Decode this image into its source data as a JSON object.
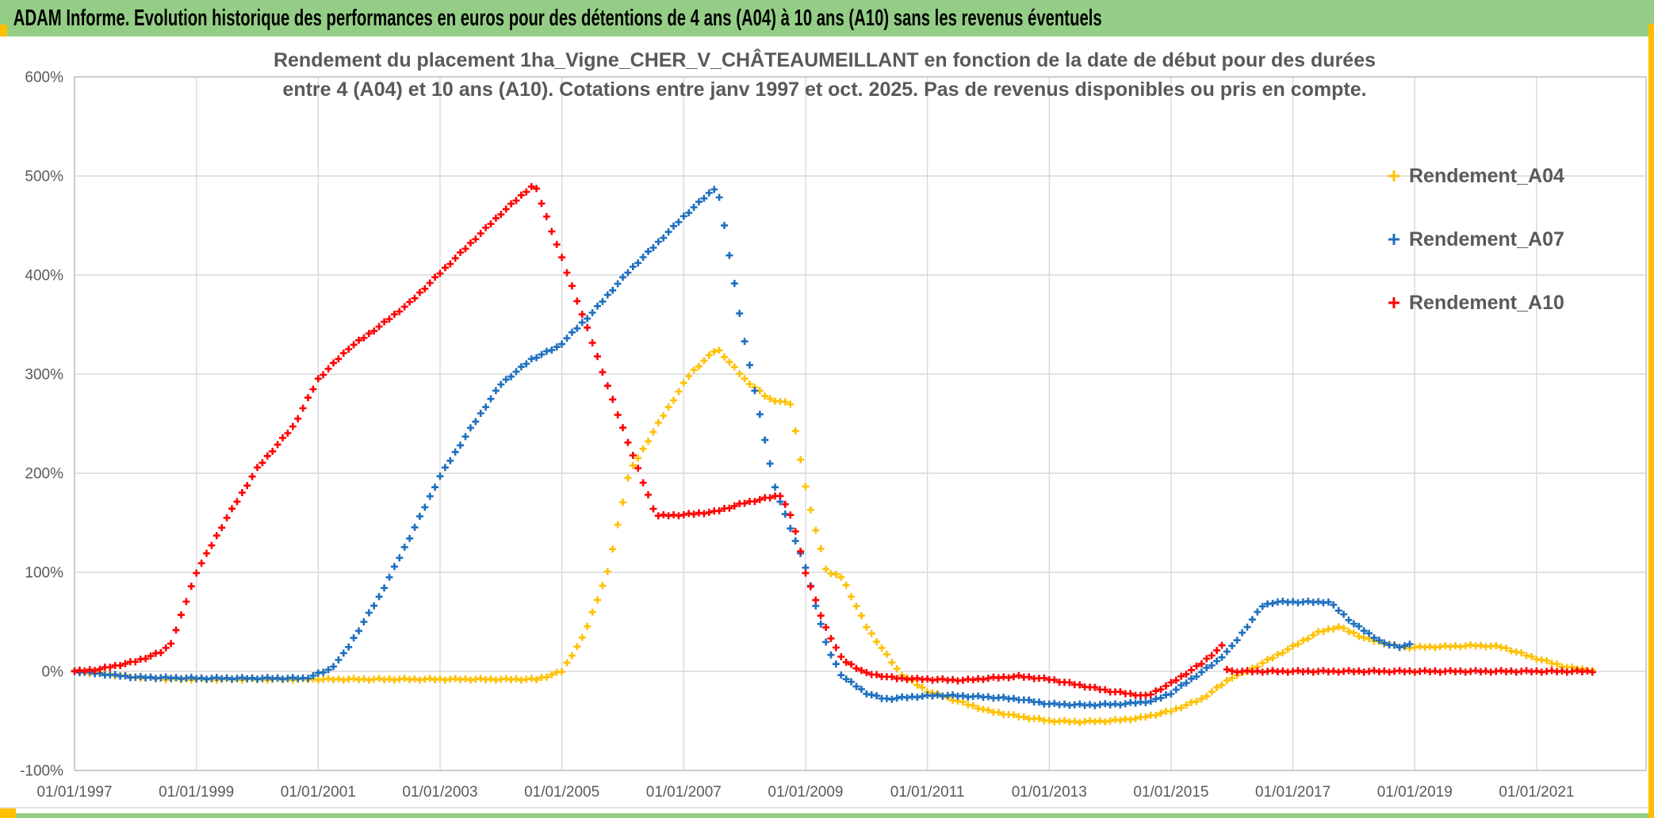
{
  "banner": {
    "title": "ADAM Informe. Evolution historique des performances en euros pour des détentions de 4 ans (A04) à 10 ans (A10) sans les revenus éventuels",
    "bg_color": "#94CE86",
    "accent_color": "#FFC000"
  },
  "chart_data": {
    "type": "scatter",
    "marker": "+",
    "title_line1": "Rendement du placement 1ha_Vigne_CHER_V_CHÂTEAUMEILLANT en fonction de la date de début pour des durées",
    "title_line2": "entre 4 (A04) et 10 ans (A10). Cotations entre janv 1997 et oct. 2025. Pas de revenus disponibles ou pris en compte.",
    "x_axis": {
      "tick_labels": [
        "01/01/1997",
        "01/01/1999",
        "01/01/2001",
        "01/01/2003",
        "01/01/2005",
        "01/01/2007",
        "01/01/2009",
        "01/01/2011",
        "01/01/2013",
        "01/01/2015",
        "01/01/2017",
        "01/01/2019",
        "01/01/2021"
      ],
      "range_years": [
        1997.0,
        2022.8
      ],
      "grid": true
    },
    "y_axis": {
      "tick_labels": [
        "600%",
        "500%",
        "400%",
        "300%",
        "200%",
        "100%",
        "0%",
        "-100%"
      ],
      "range_pct": [
        -100,
        600
      ],
      "grid": true
    },
    "legend_position": "right",
    "series": [
      {
        "name": "Rendement_A04",
        "color": "#FFC000",
        "points": [
          [
            1997.0,
            0
          ],
          [
            1997.4,
            -2
          ],
          [
            1998.0,
            -6
          ],
          [
            1998.5,
            -7.5
          ],
          [
            1999.0,
            -8
          ],
          [
            2000.0,
            -8
          ],
          [
            2001.0,
            -8
          ],
          [
            2002.0,
            -8
          ],
          [
            2003.0,
            -8
          ],
          [
            2004.0,
            -8
          ],
          [
            2004.6,
            -8
          ],
          [
            2005.0,
            0
          ],
          [
            2005.35,
            35
          ],
          [
            2005.75,
            100
          ],
          [
            2006.1,
            200
          ],
          [
            2006.6,
            252
          ],
          [
            2007.1,
            300
          ],
          [
            2007.55,
            326
          ],
          [
            2008.0,
            295
          ],
          [
            2008.4,
            275
          ],
          [
            2008.75,
            270
          ],
          [
            2009.05,
            170
          ],
          [
            2009.35,
            100
          ],
          [
            2009.6,
            95
          ],
          [
            2010.0,
            45
          ],
          [
            2010.55,
            -2
          ],
          [
            2011.0,
            -20
          ],
          [
            2012.0,
            -40
          ],
          [
            2012.55,
            -46
          ],
          [
            2013.0,
            -50
          ],
          [
            2013.5,
            -51
          ],
          [
            2014.0,
            -50
          ],
          [
            2014.5,
            -47
          ],
          [
            2015.0,
            -40
          ],
          [
            2015.5,
            -28
          ],
          [
            2016.0,
            -6
          ],
          [
            2016.25,
            0
          ],
          [
            2017.0,
            25
          ],
          [
            2017.4,
            39
          ],
          [
            2017.75,
            45
          ],
          [
            2018.2,
            33
          ],
          [
            2018.8,
            24
          ],
          [
            2019.5,
            25
          ],
          [
            2020.0,
            26
          ],
          [
            2020.4,
            25
          ],
          [
            2021.0,
            13
          ],
          [
            2021.5,
            4
          ],
          [
            2021.92,
            1
          ]
        ]
      },
      {
        "name": "Rendement_A07",
        "color": "#1E6FC0",
        "points": [
          [
            1997.0,
            0
          ],
          [
            1997.5,
            -3
          ],
          [
            1998.0,
            -6
          ],
          [
            1999.0,
            -7
          ],
          [
            2000.0,
            -7
          ],
          [
            2000.8,
            -7
          ],
          [
            2001.2,
            2
          ],
          [
            2001.45,
            20
          ],
          [
            2002.0,
            75
          ],
          [
            2002.5,
            135
          ],
          [
            2003.0,
            197
          ],
          [
            2003.5,
            245
          ],
          [
            2004.0,
            290
          ],
          [
            2004.5,
            315
          ],
          [
            2004.95,
            328
          ],
          [
            2005.5,
            362
          ],
          [
            2006.1,
            404
          ],
          [
            2006.5,
            428
          ],
          [
            2007.0,
            459
          ],
          [
            2007.55,
            490
          ],
          [
            2008.0,
            333
          ],
          [
            2008.5,
            185
          ],
          [
            2009.0,
            105
          ],
          [
            2009.35,
            25
          ],
          [
            2009.6,
            -5
          ],
          [
            2010.0,
            -22
          ],
          [
            2010.3,
            -28
          ],
          [
            2010.7,
            -26
          ],
          [
            2011.2,
            -24
          ],
          [
            2012.0,
            -26
          ],
          [
            2012.5,
            -28
          ],
          [
            2013.0,
            -33
          ],
          [
            2013.6,
            -34
          ],
          [
            2014.2,
            -33
          ],
          [
            2014.7,
            -30
          ],
          [
            2015.0,
            -22
          ],
          [
            2015.4,
            -5
          ],
          [
            2015.75,
            10
          ],
          [
            2016.0,
            25
          ],
          [
            2016.5,
            66
          ],
          [
            2016.7,
            70
          ],
          [
            2017.6,
            70
          ],
          [
            2018.0,
            48
          ],
          [
            2018.5,
            28
          ],
          [
            2018.75,
            25
          ],
          [
            2018.95,
            27
          ]
        ]
      },
      {
        "name": "Rendement_A10",
        "color": "#FF0000",
        "points": [
          [
            1997.0,
            0
          ],
          [
            1997.4,
            2
          ],
          [
            1998.0,
            10
          ],
          [
            1998.45,
            20
          ],
          [
            1998.6,
            30
          ],
          [
            1999.0,
            100
          ],
          [
            1999.5,
            155
          ],
          [
            2000.0,
            205
          ],
          [
            2000.6,
            248
          ],
          [
            2001.0,
            295
          ],
          [
            2001.5,
            326
          ],
          [
            2002.0,
            348
          ],
          [
            2002.5,
            372
          ],
          [
            2003.0,
            402
          ],
          [
            2003.5,
            432
          ],
          [
            2004.0,
            462
          ],
          [
            2004.55,
            492
          ],
          [
            2005.0,
            417
          ],
          [
            2005.5,
            332
          ],
          [
            2005.9,
            262
          ],
          [
            2006.3,
            196
          ],
          [
            2006.55,
            157
          ],
          [
            2007.0,
            158
          ],
          [
            2007.5,
            161
          ],
          [
            2008.0,
            170
          ],
          [
            2008.6,
            178
          ],
          [
            2008.8,
            150
          ],
          [
            2009.0,
            100
          ],
          [
            2009.3,
            48
          ],
          [
            2009.6,
            12
          ],
          [
            2010.0,
            -2
          ],
          [
            2010.5,
            -7
          ],
          [
            2011.0,
            -8
          ],
          [
            2011.6,
            -9
          ],
          [
            2012.0,
            -7
          ],
          [
            2012.5,
            -5
          ],
          [
            2013.0,
            -8
          ],
          [
            2013.5,
            -14
          ],
          [
            2014.0,
            -20
          ],
          [
            2014.6,
            -25
          ],
          [
            2015.0,
            -12
          ],
          [
            2015.5,
            8
          ],
          [
            2015.88,
            28
          ],
          [
            2015.92,
            0
          ],
          [
            2017.0,
            0
          ],
          [
            2019.0,
            0
          ],
          [
            2021.92,
            0
          ]
        ]
      }
    ]
  }
}
